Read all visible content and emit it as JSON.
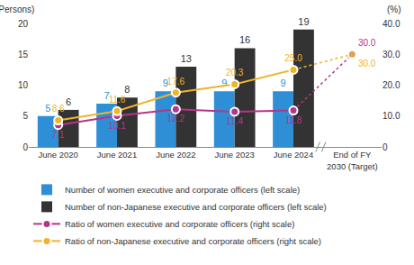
{
  "chart_data": {
    "type": "bar",
    "categories": [
      "June 2020",
      "June 2021",
      "June 2022",
      "June 2023",
      "June 2024",
      "End of FY\n2030 (Target)"
    ],
    "y_label": "(Persons)",
    "y2_label": "(%)",
    "ylim": [
      0,
      20
    ],
    "yticks": [
      0,
      5,
      10,
      15,
      20
    ],
    "y2lim": [
      0,
      40
    ],
    "y2ticks": [
      0,
      {
        "value": 10,
        "label": "10.0"
      },
      {
        "value": 20,
        "label": "20.0"
      },
      {
        "value": 30,
        "label": "30.0"
      },
      {
        "value": 40,
        "label": "40.0"
      }
    ],
    "grid": false,
    "legend": "bottom",
    "data_labels": true,
    "series": [
      {
        "name": "Number of women executive and corporate officers (left scale)",
        "type": "bar",
        "color": "#2f8fd6",
        "values": [
          5,
          7,
          9,
          9,
          9,
          null
        ]
      },
      {
        "name": "Number of non-Japanese executive and corporate officers (left scale)",
        "type": "bar",
        "color": "#333333",
        "values": [
          6,
          8,
          13,
          16,
          19,
          null
        ]
      },
      {
        "name": "Ratio of women executive and corporate officers (right scale)",
        "type": "line",
        "axis": "y2",
        "marker": "circle",
        "color": "#b5358a",
        "values": [
          7.1,
          10.1,
          12.2,
          11.4,
          11.8,
          30
        ],
        "value_labels": [
          "7.1",
          "10.1",
          "12.2",
          "11.4",
          "11.8",
          "30.0"
        ]
      },
      {
        "name": "Ratio of non-Japanese executive and corporate officers (right scale)",
        "type": "line",
        "axis": "y2",
        "marker": "circle",
        "color": "#f0b429",
        "values": [
          8.6,
          11.6,
          17.6,
          20.3,
          25,
          30
        ],
        "value_labels": [
          "8.6",
          "11.6",
          "17.6",
          "20.3",
          "25.0",
          "30.0"
        ]
      }
    ]
  }
}
